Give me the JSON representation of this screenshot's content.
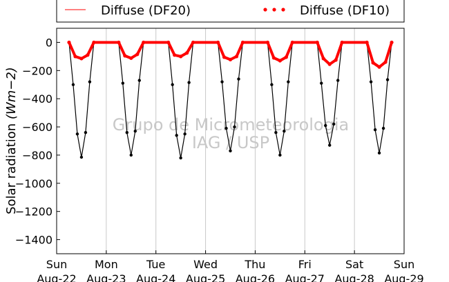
{
  "chart_data": {
    "type": "scatter",
    "title": "",
    "xlabel": "",
    "ylabel": "Solar radiation",
    "ylabel_unit": "(Wm−2)",
    "ylim": [
      -1500,
      100
    ],
    "yticks": [
      0,
      -200,
      -400,
      -600,
      -800,
      -1000,
      -1200,
      -1400
    ],
    "ytick_labels": [
      "0",
      "−200",
      "−400",
      "−600",
      "−800",
      "−1000",
      "−1200",
      "−1400"
    ],
    "xlim": [
      "2015-08-22",
      "2015-08-29"
    ],
    "xticks": [
      {
        "date": "2015-08-22",
        "day": "Sun",
        "label": "Aug-22"
      },
      {
        "date": "2015-08-23",
        "day": "Mon",
        "label": "Aug-23"
      },
      {
        "date": "2015-08-24",
        "day": "Tue",
        "label": "Aug-24"
      },
      {
        "date": "2015-08-25",
        "day": "Wed",
        "label": "Aug-25"
      },
      {
        "date": "2015-08-26",
        "day": "Thu",
        "label": "Aug-26"
      },
      {
        "date": "2015-08-27",
        "day": "Fri",
        "label": "Aug-27"
      },
      {
        "date": "2015-08-28",
        "day": "Sat",
        "label": "Aug-28"
      },
      {
        "date": "2015-08-29",
        "day": "Sun",
        "label": "Aug-29"
      }
    ],
    "grid": "vertical",
    "legend_position": "top",
    "series": [
      {
        "name": "Diffuse (DF20)",
        "style": "line",
        "color": "#ff0000",
        "x": [
          "2015-08-22 06:00",
          "2015-08-22 09:00",
          "2015-08-22 12:00",
          "2015-08-22 15:00",
          "2015-08-22 18:00",
          "2015-08-23 06:00",
          "2015-08-23 09:00",
          "2015-08-23 12:00",
          "2015-08-23 15:00",
          "2015-08-23 18:00",
          "2015-08-24 06:00",
          "2015-08-24 09:00",
          "2015-08-24 12:00",
          "2015-08-24 15:00",
          "2015-08-24 18:00",
          "2015-08-25 06:00",
          "2015-08-25 09:00",
          "2015-08-25 12:00",
          "2015-08-25 15:00",
          "2015-08-25 18:00",
          "2015-08-26 06:00",
          "2015-08-26 09:00",
          "2015-08-26 12:00",
          "2015-08-26 15:00",
          "2015-08-26 18:00",
          "2015-08-27 06:00",
          "2015-08-27 09:00",
          "2015-08-27 12:00",
          "2015-08-27 15:00",
          "2015-08-27 18:00",
          "2015-08-28 06:00",
          "2015-08-28 09:00",
          "2015-08-28 12:00",
          "2015-08-28 15:00",
          "2015-08-28 18:00"
        ],
        "y": [
          0,
          -105,
          -120,
          -95,
          0,
          0,
          -100,
          -118,
          -90,
          0,
          0,
          -95,
          -105,
          -80,
          0,
          0,
          -110,
          -128,
          -105,
          0,
          0,
          -115,
          -135,
          -110,
          0,
          0,
          -120,
          -160,
          -130,
          0,
          0,
          -150,
          -180,
          -145,
          0
        ]
      },
      {
        "name": "Diffuse (DF10)",
        "style": "markers",
        "color": "#ff0000",
        "x": [
          "2015-08-22 06:00",
          "2015-08-22 09:00",
          "2015-08-22 12:00",
          "2015-08-22 15:00",
          "2015-08-22 18:00",
          "2015-08-23 06:00",
          "2015-08-23 09:00",
          "2015-08-23 12:00",
          "2015-08-23 15:00",
          "2015-08-23 18:00",
          "2015-08-24 06:00",
          "2015-08-24 09:00",
          "2015-08-24 12:00",
          "2015-08-24 15:00",
          "2015-08-24 18:00",
          "2015-08-25 06:00",
          "2015-08-25 09:00",
          "2015-08-25 12:00",
          "2015-08-25 15:00",
          "2015-08-25 18:00",
          "2015-08-26 06:00",
          "2015-08-26 09:00",
          "2015-08-26 12:00",
          "2015-08-26 15:00",
          "2015-08-26 18:00",
          "2015-08-27 06:00",
          "2015-08-27 09:00",
          "2015-08-27 12:00",
          "2015-08-27 15:00",
          "2015-08-27 18:00",
          "2015-08-28 06:00",
          "2015-08-28 09:00",
          "2015-08-28 12:00",
          "2015-08-28 15:00",
          "2015-08-28 18:00"
        ],
        "y": [
          0,
          -100,
          -115,
          -90,
          0,
          0,
          -95,
          -112,
          -85,
          0,
          0,
          -90,
          -100,
          -75,
          0,
          0,
          -105,
          -122,
          -100,
          0,
          0,
          -110,
          -130,
          -105,
          0,
          0,
          -115,
          -155,
          -125,
          0,
          0,
          -145,
          -175,
          -140,
          0
        ]
      },
      {
        "name": "",
        "style": "markers",
        "color": "#000000",
        "x": [
          "2015-08-22 06:00",
          "2015-08-22 08:00",
          "2015-08-22 10:00",
          "2015-08-22 12:00",
          "2015-08-22 14:00",
          "2015-08-22 16:00",
          "2015-08-22 18:00",
          "2015-08-23 06:00",
          "2015-08-23 08:00",
          "2015-08-23 10:00",
          "2015-08-23 12:00",
          "2015-08-23 14:00",
          "2015-08-23 16:00",
          "2015-08-23 18:00",
          "2015-08-24 06:00",
          "2015-08-24 08:00",
          "2015-08-24 10:00",
          "2015-08-24 12:00",
          "2015-08-24 14:00",
          "2015-08-24 16:00",
          "2015-08-24 18:00",
          "2015-08-25 06:00",
          "2015-08-25 08:00",
          "2015-08-25 10:00",
          "2015-08-25 12:00",
          "2015-08-25 14:00",
          "2015-08-25 16:00",
          "2015-08-25 18:00",
          "2015-08-26 06:00",
          "2015-08-26 08:00",
          "2015-08-26 10:00",
          "2015-08-26 12:00",
          "2015-08-26 14:00",
          "2015-08-26 16:00",
          "2015-08-26 18:00",
          "2015-08-27 06:00",
          "2015-08-27 08:00",
          "2015-08-27 10:00",
          "2015-08-27 12:00",
          "2015-08-27 14:00",
          "2015-08-27 16:00",
          "2015-08-27 18:00",
          "2015-08-28 06:00",
          "2015-08-28 08:00",
          "2015-08-28 10:00",
          "2015-08-28 12:00",
          "2015-08-28 14:00",
          "2015-08-28 16:00",
          "2015-08-28 18:00"
        ],
        "y": [
          0,
          -300,
          -650,
          -815,
          -640,
          -280,
          0,
          0,
          -290,
          -640,
          -800,
          -630,
          -270,
          0,
          0,
          -300,
          -660,
          -820,
          -650,
          -285,
          0,
          0,
          -280,
          -610,
          -770,
          -600,
          -260,
          0,
          0,
          -300,
          -640,
          -800,
          -630,
          -280,
          0,
          0,
          -290,
          -590,
          -730,
          -580,
          -270,
          0,
          0,
          -280,
          -620,
          -785,
          -610,
          -265,
          0
        ]
      }
    ],
    "watermark": [
      "Grupo de Micrometeorologia",
      "IAG / USP"
    ]
  }
}
